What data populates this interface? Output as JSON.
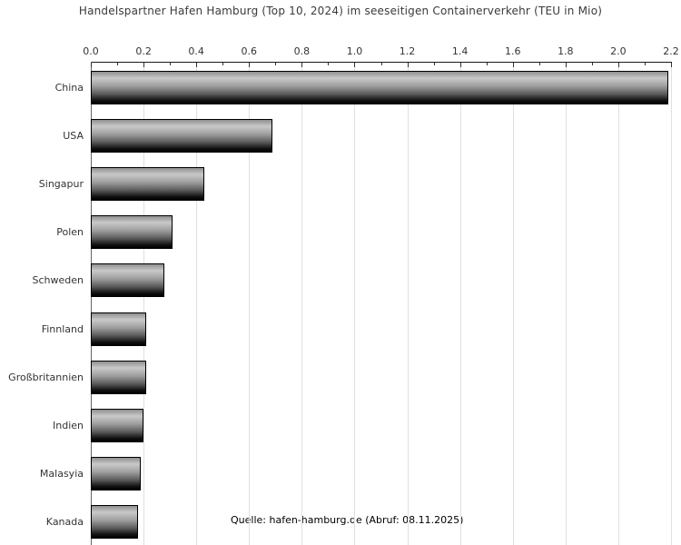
{
  "title": "Handelspartner Hafen Hamburg (Top 10, 2024) im seeseitigen Containerverkehr (TEU in Mio)",
  "source_note": "Quelle: hafen-hamburg.de (Abruf: 08.11.2025)",
  "chart_data": {
    "type": "bar",
    "orientation": "horizontal",
    "title": "Handelspartner Hafen Hamburg (Top 10, 2024) im seeseitigen Containerverkehr (TEU in Mio)",
    "xlabel": "",
    "ylabel": "",
    "categories": [
      "China",
      "USA",
      "Singapur",
      "Polen",
      "Schweden",
      "Finnland",
      "Großbritannien",
      "Indien",
      "Malasyia",
      "Kanada"
    ],
    "values": [
      2.19,
      0.69,
      0.43,
      0.31,
      0.28,
      0.21,
      0.21,
      0.2,
      0.19,
      0.18
    ],
    "xlim": [
      0,
      2.2
    ],
    "xtick_labels": [
      "0.0",
      "0.2",
      "0.4",
      "0.6",
      "0.8",
      "1.0",
      "1.2",
      "1.4",
      "1.6",
      "1.8",
      "2.0",
      "2.2"
    ],
    "major_tick_step": 0.2,
    "minor_tick_step": 0.1,
    "grid": true,
    "axis_position": "top",
    "legend": "none",
    "annotation": "Quelle: hafen-hamburg.de (Abruf: 08.11.2025)"
  },
  "colors": {
    "background": "#ffffff",
    "title_text": "#3a3a3a",
    "tick_label_text": "#333333",
    "category_label_text": "#333333",
    "axis_line": "#1a1a1a",
    "y_axis_line": "#666666",
    "gridline": "#e0e0e0",
    "bar_border": "#000000",
    "bar_gradient": [
      "#8f8f8f",
      "#c9c9c9",
      "#9e9e9e",
      "#5a5a5a",
      "#111111",
      "#000000"
    ]
  }
}
